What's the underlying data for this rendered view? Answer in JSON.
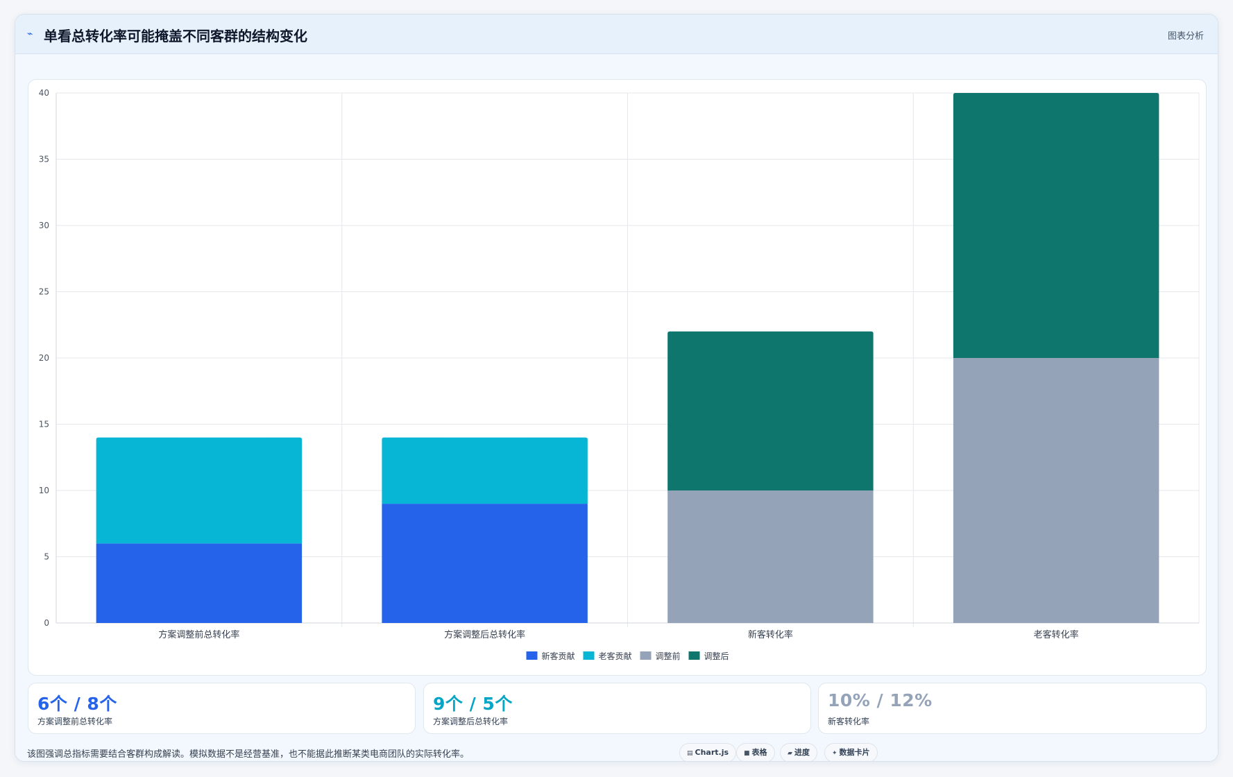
{
  "header": {
    "icon": "trend-icon",
    "title": "单看总转化率可能掩盖不同客群的结构变化",
    "link_label": "图表分析"
  },
  "chart_data": {
    "type": "bar",
    "stacked": true,
    "categories": [
      "方案调整前总转化率",
      "方案调整后总转化率",
      "新客转化率",
      "老客转化率"
    ],
    "series": [
      {
        "name": "新客贡献",
        "color": "#2563eb",
        "values": [
          6,
          9,
          null,
          null
        ]
      },
      {
        "name": "老客贡献",
        "color": "#06b6d4",
        "values": [
          8,
          5,
          null,
          null
        ]
      },
      {
        "name": "调整前",
        "color": "#94a3b8",
        "values": [
          null,
          null,
          10,
          20
        ]
      },
      {
        "name": "调整后",
        "color": "#0f766e",
        "values": [
          null,
          null,
          12,
          20
        ]
      }
    ],
    "ylim": [
      0,
      40
    ],
    "yticks": [
      0,
      5,
      10,
      15,
      20,
      25,
      30,
      35,
      40
    ],
    "grid": true,
    "legend_position": "bottom"
  },
  "stats": [
    {
      "value": "6个 / 8个",
      "label": "方案调整前总转化率",
      "color": "#2563eb"
    },
    {
      "value": "9个 / 5个",
      "label": "方案调整后总转化率",
      "color": "#06a5c6"
    },
    {
      "value": "10% / 12%",
      "label": "新客转化率",
      "color": "#94a3b8"
    }
  ],
  "footnote": "该图强调总指标需要结合客群构成解读。模拟数据不是经营基准，也不能据此推断某类电商团队的实际转化率。",
  "tags": [
    {
      "icon": "chart-icon",
      "label": "Chart.js"
    },
    {
      "icon": "table-icon",
      "label": "表格"
    },
    {
      "icon": "progress-icon",
      "label": "进度"
    },
    {
      "icon": "sparkle-icon",
      "label": "数据卡片"
    }
  ]
}
